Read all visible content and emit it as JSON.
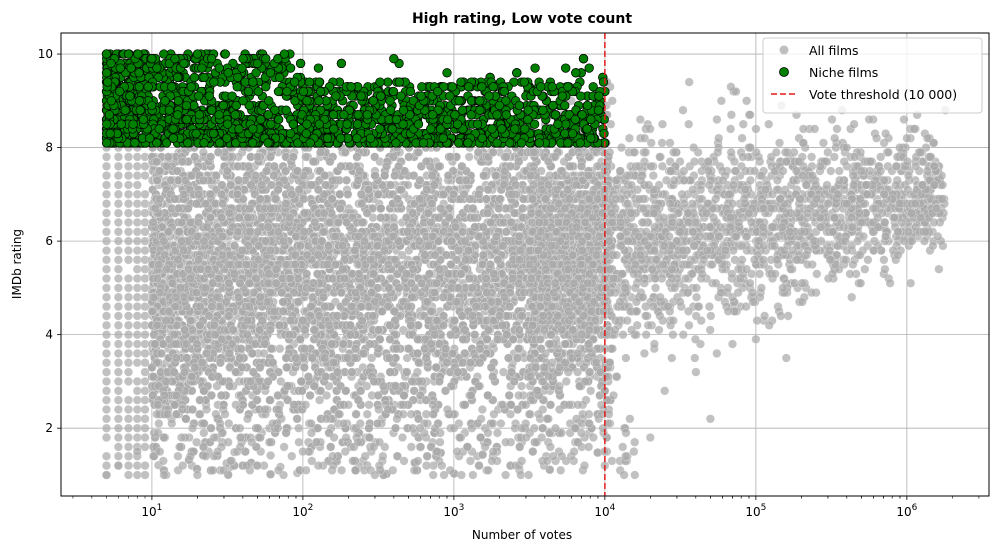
{
  "chart_data": {
    "type": "scatter",
    "title": "High rating, Low vote count",
    "xlabel": "Number of votes",
    "ylabel": "IMDb rating",
    "xscale": "log",
    "xlim": [
      2.5,
      3500000
    ],
    "ylim": [
      0.55,
      10.45
    ],
    "grid": true,
    "x_ticks": [
      {
        "value": 10,
        "base": "10",
        "exp": "1"
      },
      {
        "value": 100,
        "base": "10",
        "exp": "2"
      },
      {
        "value": 1000,
        "base": "10",
        "exp": "3"
      },
      {
        "value": 10000,
        "base": "10",
        "exp": "4"
      },
      {
        "value": 100000,
        "base": "10",
        "exp": "5"
      },
      {
        "value": 1000000,
        "base": "10",
        "exp": "6"
      }
    ],
    "y_ticks": [
      2,
      4,
      6,
      8,
      10
    ],
    "legend_position": "top-right",
    "legend": {
      "all_label": "All films",
      "niche_label": "Niche films",
      "threshold_label": "Vote threshold (10 000)"
    },
    "threshold": {
      "x": 10000,
      "color": "#e31a1c"
    },
    "series": [
      {
        "name": "All films",
        "color": "#a9a9a9",
        "description_rule": "rating 1.0-10.0, votes 5 to ~2,000,000; dense band at low votes",
        "sample_points": [
          [
            5,
            1.0
          ],
          [
            6,
            1.2
          ],
          [
            8,
            1.5
          ],
          [
            12,
            1.0
          ],
          [
            20,
            1.0
          ],
          [
            50,
            1.2
          ],
          [
            100,
            1.5
          ],
          [
            300,
            1.0
          ],
          [
            1000,
            2.0
          ],
          [
            3000,
            2.5
          ],
          [
            10000,
            3.7
          ],
          [
            20000,
            1.8
          ],
          [
            50000,
            2.2
          ],
          [
            100000,
            3.9
          ],
          [
            200000,
            6.2
          ],
          [
            500000,
            7.5
          ],
          [
            1000000,
            8.2
          ],
          [
            1800000,
            8.8
          ]
        ]
      },
      {
        "name": "Niche films",
        "color": "#008000",
        "description_rule": "rating >= 8.1 and votes < 10000",
        "sample_points": [
          [
            5,
            10.0
          ],
          [
            7,
            10.0
          ],
          [
            10,
            9.9
          ],
          [
            20,
            10.0
          ],
          [
            50,
            9.8
          ],
          [
            400,
            9.9
          ],
          [
            900,
            9.6
          ],
          [
            5500,
            9.7
          ],
          [
            9800,
            9.4
          ]
        ]
      }
    ]
  }
}
